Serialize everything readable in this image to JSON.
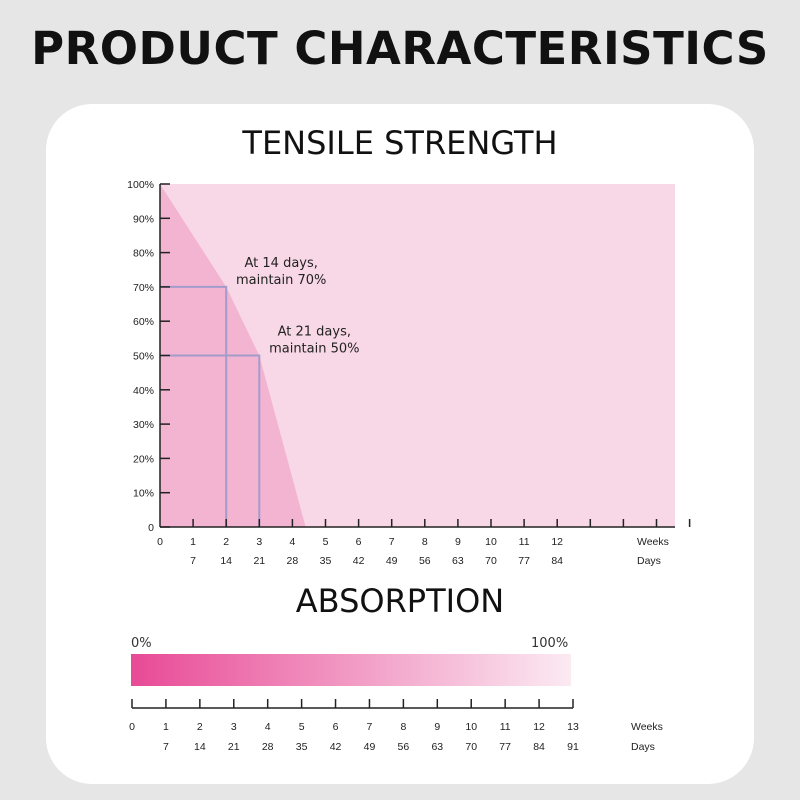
{
  "page_title": "PRODUCT CHARACTERISTICS",
  "colors": {
    "bg_light": "#f8d8e6",
    "bg_dark": "#f3b4d2",
    "guide_line": "#a39ccb",
    "gradient_start": "#e84a96",
    "gradient_end": "#fbeaf2"
  },
  "chart_data": [
    {
      "type": "area",
      "title": "TENSILE STRENGTH",
      "x_unit_labels": [
        "Weeks",
        "Days"
      ],
      "y_ticks": [
        "0",
        "10%",
        "20%",
        "30%",
        "40%",
        "50%",
        "60%",
        "70%",
        "80%",
        "90%",
        "100%"
      ],
      "x_week_ticks": [
        "0",
        "1",
        "2",
        "3",
        "4",
        "5",
        "6",
        "7",
        "8",
        "9",
        "10",
        "11",
        "12"
      ],
      "x_day_ticks": [
        "7",
        "14",
        "21",
        "28",
        "35",
        "42",
        "49",
        "56",
        "63",
        "70",
        "77",
        "84"
      ],
      "xlim_weeks": [
        0,
        15.5
      ],
      "ylim": [
        0,
        100
      ],
      "series": [
        {
          "x_weeks": [
            0,
            2,
            3,
            4.4
          ],
          "y": [
            100,
            70,
            50,
            0
          ]
        }
      ],
      "annotations": [
        {
          "line1": "At 14 days,",
          "line2": "maintain 70%",
          "x_weeks": 2,
          "y": 70
        },
        {
          "line1": "At 21 days,",
          "line2": "maintain 50%",
          "x_weeks": 3,
          "y": 50
        }
      ]
    },
    {
      "type": "bar",
      "title": "ABSORPTION",
      "start_label": "0%",
      "end_label": "100%",
      "x_unit_labels": [
        "Weeks",
        "Days"
      ],
      "x_week_ticks": [
        "0",
        "1",
        "2",
        "3",
        "4",
        "5",
        "6",
        "7",
        "8",
        "9",
        "10",
        "11",
        "12",
        "13"
      ],
      "x_day_ticks": [
        "7",
        "14",
        "21",
        "28",
        "35",
        "42",
        "49",
        "56",
        "63",
        "70",
        "77",
        "84",
        "91"
      ],
      "range_weeks": [
        0,
        13
      ]
    }
  ]
}
